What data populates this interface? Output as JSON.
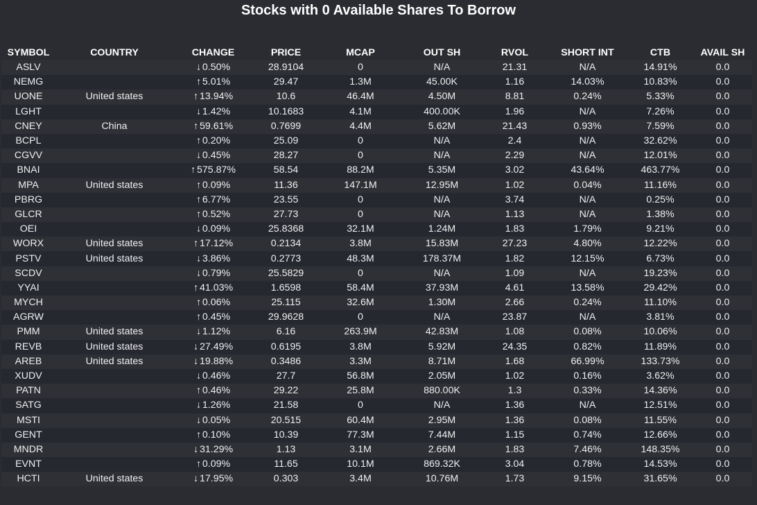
{
  "title": "Stocks with 0 Available Shares To Borrow",
  "colors": {
    "background": "#2a2c31",
    "row_odd": "#2e3036",
    "row_even": "#262830",
    "up": "#7ddc7d",
    "down": "#f08080"
  },
  "table": {
    "columns": [
      "SYMBOL",
      "COUNTRY",
      "CHANGE",
      "PRICE",
      "MCAP",
      "OUT SH",
      "RVOL",
      "SHORT INT",
      "CTB",
      "AVAIL SH"
    ],
    "rows": [
      {
        "symbol": "ASLV",
        "country": "",
        "dir": "down",
        "change": "0.50%",
        "price": "28.9104",
        "mcap": "0",
        "outsh": "N/A",
        "rvol": "21.31",
        "shortint": "N/A",
        "ctb": "14.91%",
        "avail": "0.0"
      },
      {
        "symbol": "NEMG",
        "country": "",
        "dir": "up",
        "change": "5.01%",
        "price": "29.47",
        "mcap": "1.3M",
        "outsh": "45.00K",
        "rvol": "1.16",
        "shortint": "14.03%",
        "ctb": "10.83%",
        "avail": "0.0"
      },
      {
        "symbol": "UONE",
        "country": "United states",
        "dir": "up",
        "change": "13.94%",
        "price": "10.6",
        "mcap": "46.4M",
        "outsh": "4.50M",
        "rvol": "8.81",
        "shortint": "0.24%",
        "ctb": "5.33%",
        "avail": "0.0"
      },
      {
        "symbol": "LGHT",
        "country": "",
        "dir": "down",
        "change": "1.42%",
        "price": "10.1683",
        "mcap": "4.1M",
        "outsh": "400.00K",
        "rvol": "1.96",
        "shortint": "N/A",
        "ctb": "7.26%",
        "avail": "0.0"
      },
      {
        "symbol": "CNEY",
        "country": "China",
        "dir": "up",
        "change": "59.61%",
        "price": "0.7699",
        "mcap": "4.4M",
        "outsh": "5.62M",
        "rvol": "21.43",
        "shortint": "0.93%",
        "ctb": "7.59%",
        "avail": "0.0"
      },
      {
        "symbol": "BCPL",
        "country": "",
        "dir": "up",
        "change": "0.20%",
        "price": "25.09",
        "mcap": "0",
        "outsh": "N/A",
        "rvol": "2.4",
        "shortint": "N/A",
        "ctb": "32.62%",
        "avail": "0.0"
      },
      {
        "symbol": "CGVV",
        "country": "",
        "dir": "down",
        "change": "0.45%",
        "price": "28.27",
        "mcap": "0",
        "outsh": "N/A",
        "rvol": "2.29",
        "shortint": "N/A",
        "ctb": "12.01%",
        "avail": "0.0"
      },
      {
        "symbol": "BNAI",
        "country": "",
        "dir": "up",
        "change": "575.87%",
        "price": "58.54",
        "mcap": "88.2M",
        "outsh": "5.35M",
        "rvol": "3.02",
        "shortint": "43.64%",
        "ctb": "463.77%",
        "avail": "0.0"
      },
      {
        "symbol": "MPA",
        "country": "United states",
        "dir": "up",
        "change": "0.09%",
        "price": "11.36",
        "mcap": "147.1M",
        "outsh": "12.95M",
        "rvol": "1.02",
        "shortint": "0.04%",
        "ctb": "11.16%",
        "avail": "0.0"
      },
      {
        "symbol": "PBRG",
        "country": "",
        "dir": "up",
        "change": "6.77%",
        "price": "23.55",
        "mcap": "0",
        "outsh": "N/A",
        "rvol": "3.74",
        "shortint": "N/A",
        "ctb": "0.25%",
        "avail": "0.0"
      },
      {
        "symbol": "GLCR",
        "country": "",
        "dir": "up",
        "change": "0.52%",
        "price": "27.73",
        "mcap": "0",
        "outsh": "N/A",
        "rvol": "1.13",
        "shortint": "N/A",
        "ctb": "1.38%",
        "avail": "0.0"
      },
      {
        "symbol": "OEI",
        "country": "",
        "dir": "down",
        "change": "0.09%",
        "price": "25.8368",
        "mcap": "32.1M",
        "outsh": "1.24M",
        "rvol": "1.83",
        "shortint": "1.79%",
        "ctb": "9.21%",
        "avail": "0.0"
      },
      {
        "symbol": "WORX",
        "country": "United states",
        "dir": "up",
        "change": "17.12%",
        "price": "0.2134",
        "mcap": "3.8M",
        "outsh": "15.83M",
        "rvol": "27.23",
        "shortint": "4.80%",
        "ctb": "12.22%",
        "avail": "0.0"
      },
      {
        "symbol": "PSTV",
        "country": "United states",
        "dir": "down",
        "change": "3.86%",
        "price": "0.2773",
        "mcap": "48.3M",
        "outsh": "178.37M",
        "rvol": "1.82",
        "shortint": "12.15%",
        "ctb": "6.73%",
        "avail": "0.0"
      },
      {
        "symbol": "SCDV",
        "country": "",
        "dir": "down",
        "change": "0.79%",
        "price": "25.5829",
        "mcap": "0",
        "outsh": "N/A",
        "rvol": "1.09",
        "shortint": "N/A",
        "ctb": "19.23%",
        "avail": "0.0"
      },
      {
        "symbol": "YYAI",
        "country": "",
        "dir": "up",
        "change": "41.03%",
        "price": "1.6598",
        "mcap": "58.4M",
        "outsh": "37.93M",
        "rvol": "4.61",
        "shortint": "13.58%",
        "ctb": "29.42%",
        "avail": "0.0"
      },
      {
        "symbol": "MYCH",
        "country": "",
        "dir": "up",
        "change": "0.06%",
        "price": "25.115",
        "mcap": "32.6M",
        "outsh": "1.30M",
        "rvol": "2.66",
        "shortint": "0.24%",
        "ctb": "11.10%",
        "avail": "0.0"
      },
      {
        "symbol": "AGRW",
        "country": "",
        "dir": "up",
        "change": "0.45%",
        "price": "29.9628",
        "mcap": "0",
        "outsh": "N/A",
        "rvol": "23.87",
        "shortint": "N/A",
        "ctb": "3.81%",
        "avail": "0.0"
      },
      {
        "symbol": "PMM",
        "country": "United states",
        "dir": "down",
        "change": "1.12%",
        "price": "6.16",
        "mcap": "263.9M",
        "outsh": "42.83M",
        "rvol": "1.08",
        "shortint": "0.08%",
        "ctb": "10.06%",
        "avail": "0.0"
      },
      {
        "symbol": "REVB",
        "country": "United states",
        "dir": "down",
        "change": "27.49%",
        "price": "0.6195",
        "mcap": "3.8M",
        "outsh": "5.92M",
        "rvol": "24.35",
        "shortint": "0.82%",
        "ctb": "11.89%",
        "avail": "0.0"
      },
      {
        "symbol": "AREB",
        "country": "United states",
        "dir": "down",
        "change": "19.88%",
        "price": "0.3486",
        "mcap": "3.3M",
        "outsh": "8.71M",
        "rvol": "1.68",
        "shortint": "66.99%",
        "ctb": "133.73%",
        "avail": "0.0"
      },
      {
        "symbol": "XUDV",
        "country": "",
        "dir": "down",
        "change": "0.46%",
        "price": "27.7",
        "mcap": "56.8M",
        "outsh": "2.05M",
        "rvol": "1.02",
        "shortint": "0.16%",
        "ctb": "3.62%",
        "avail": "0.0"
      },
      {
        "symbol": "PATN",
        "country": "",
        "dir": "up",
        "change": "0.46%",
        "price": "29.22",
        "mcap": "25.8M",
        "outsh": "880.00K",
        "rvol": "1.3",
        "shortint": "0.33%",
        "ctb": "14.36%",
        "avail": "0.0"
      },
      {
        "symbol": "SATG",
        "country": "",
        "dir": "down",
        "change": "1.26%",
        "price": "21.58",
        "mcap": "0",
        "outsh": "N/A",
        "rvol": "1.36",
        "shortint": "N/A",
        "ctb": "12.51%",
        "avail": "0.0"
      },
      {
        "symbol": "MSTI",
        "country": "",
        "dir": "down",
        "change": "0.05%",
        "price": "20.515",
        "mcap": "60.4M",
        "outsh": "2.95M",
        "rvol": "1.36",
        "shortint": "0.08%",
        "ctb": "11.55%",
        "avail": "0.0"
      },
      {
        "symbol": "GENT",
        "country": "",
        "dir": "up",
        "change": "0.10%",
        "price": "10.39",
        "mcap": "77.3M",
        "outsh": "7.44M",
        "rvol": "1.15",
        "shortint": "0.74%",
        "ctb": "12.66%",
        "avail": "0.0"
      },
      {
        "symbol": "MNDR",
        "country": "",
        "dir": "down",
        "change": "31.29%",
        "price": "1.13",
        "mcap": "3.1M",
        "outsh": "2.66M",
        "rvol": "1.83",
        "shortint": "7.46%",
        "ctb": "148.35%",
        "avail": "0.0"
      },
      {
        "symbol": "EVNT",
        "country": "",
        "dir": "up",
        "change": "0.09%",
        "price": "11.65",
        "mcap": "10.1M",
        "outsh": "869.32K",
        "rvol": "3.04",
        "shortint": "0.78%",
        "ctb": "14.53%",
        "avail": "0.0"
      },
      {
        "symbol": "HCTI",
        "country": "United states",
        "dir": "down",
        "change": "17.95%",
        "price": "0.303",
        "mcap": "3.4M",
        "outsh": "10.76M",
        "rvol": "1.73",
        "shortint": "9.15%",
        "ctb": "31.65%",
        "avail": "0.0"
      }
    ]
  }
}
